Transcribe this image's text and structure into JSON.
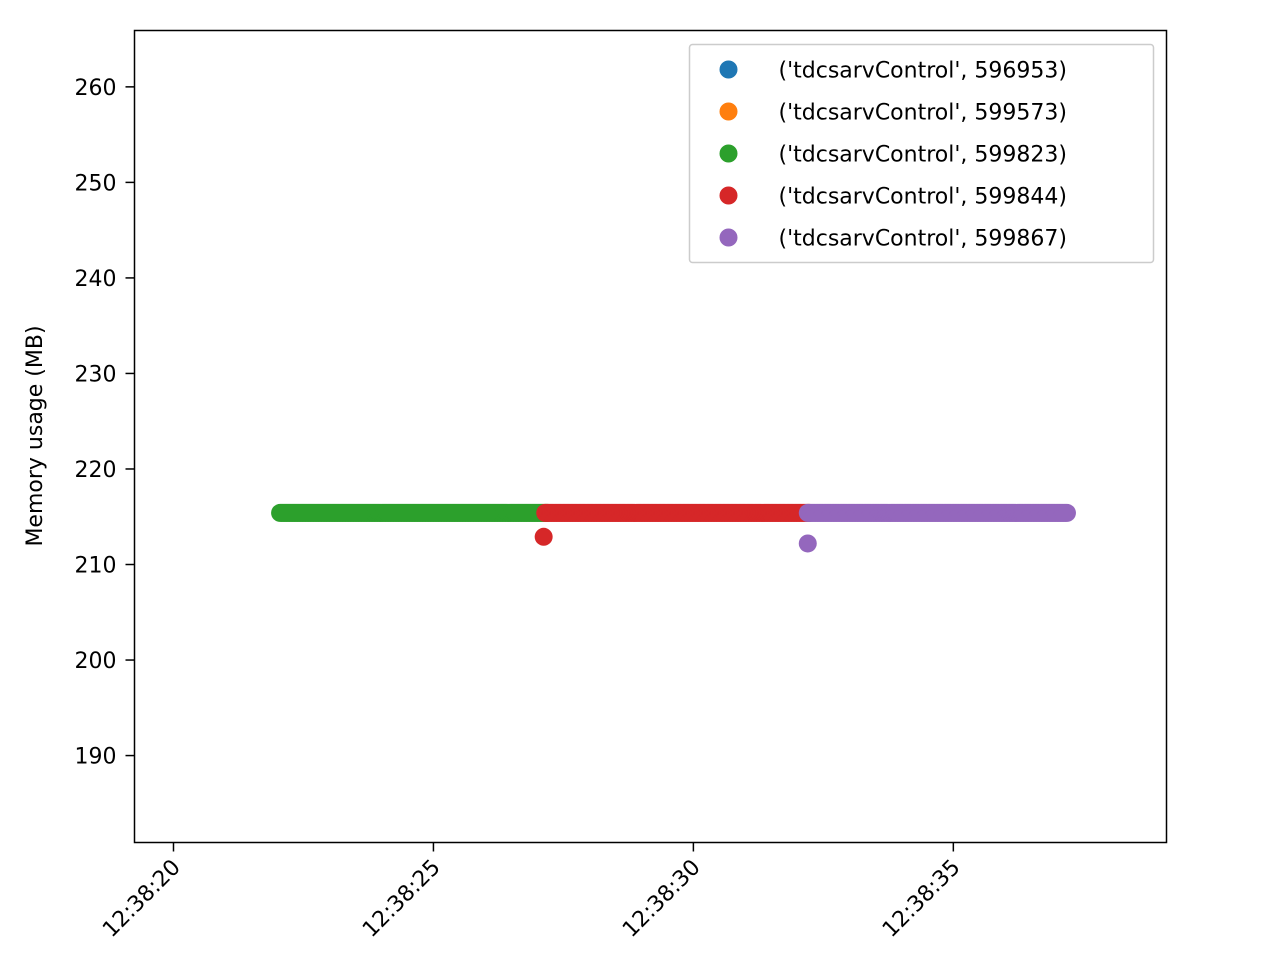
{
  "chart_data": {
    "type": "scatter",
    "title": "",
    "xlabel": "",
    "ylabel": "Memory usage (MB)",
    "x_ticks": [
      "12:38:20",
      "12:38:25",
      "12:38:30",
      "12:38:35"
    ],
    "y_ticks": [
      190,
      200,
      210,
      220,
      230,
      240,
      250,
      260
    ],
    "xlim": [
      "12:38:19.25",
      "12:38:39.1"
    ],
    "ylim": [
      180.9,
      265.9
    ],
    "grid": false,
    "legend_position": "top-right",
    "colors": {
      "series_0": "#1f77b4",
      "series_1": "#ff7f0e",
      "series_2": "#2ca02c",
      "series_3": "#d62728",
      "series_4": "#9467bd"
    },
    "series": [
      {
        "name": "('tdcsarvControl', 596953)",
        "color": "#1f77b4",
        "points": []
      },
      {
        "name": "('tdcsarvControl', 599573)",
        "color": "#ff7f0e",
        "points": []
      },
      {
        "name": "('tdcsarvControl', 599823)",
        "color": "#2ca02c",
        "range": {
          "start": "12:38:22.05",
          "end": "12:38:27.2",
          "y": 215.4
        },
        "points": []
      },
      {
        "name": "('tdcsarvControl', 599844)",
        "color": "#d62728",
        "range": {
          "start": "12:38:27.15",
          "end": "12:38:32.25",
          "y": 215.4
        },
        "points": [
          {
            "x": "12:38:27.12",
            "y": 212.9
          }
        ]
      },
      {
        "name": "('tdcsarvControl', 599867)",
        "color": "#9467bd",
        "range": {
          "start": "12:38:32.2",
          "end": "12:38:37.2",
          "y": 215.4
        },
        "points": [
          {
            "x": "12:38:32.2",
            "y": 212.2
          }
        ]
      }
    ]
  }
}
